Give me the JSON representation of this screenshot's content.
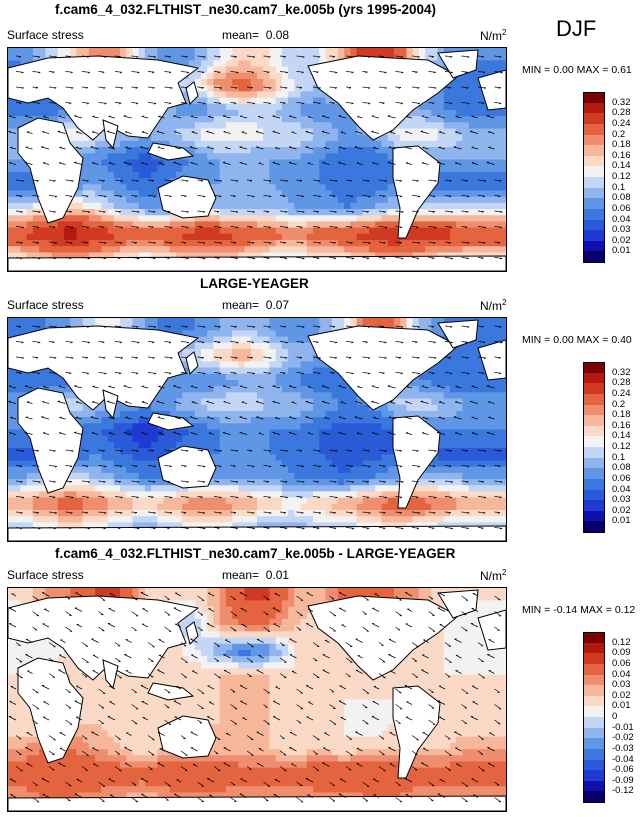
{
  "season": "DJF",
  "panels": [
    {
      "title": "f.cam6_4_032.FLTHIST_ne30.cam7_ke.005b (yrs 1995-2004)",
      "left_label": "Surface stress",
      "mean_label": "mean=",
      "mean_value": "0.08",
      "units": "N/m",
      "units_exp": "2",
      "min_label": "MIN =",
      "min_value": "0.00",
      "max_label": "MAX =",
      "max_value": "0.61",
      "colorbar_labels": [
        "0.32",
        "0.28",
        "0.24",
        "0.2",
        "0.18",
        "0.16",
        "0.14",
        "0.12",
        "0.1",
        "0.08",
        "0.06",
        "0.04",
        "0.03",
        "0.02",
        "0.01"
      ]
    },
    {
      "title": "LARGE-YEAGER",
      "left_label": "Surface stress",
      "mean_label": "mean=",
      "mean_value": "0.07",
      "units": "N/m",
      "units_exp": "2",
      "min_label": "MIN =",
      "min_value": "0.00",
      "max_label": "MAX =",
      "max_value": "0.40",
      "colorbar_labels": [
        "0.32",
        "0.28",
        "0.24",
        "0.2",
        "0.18",
        "0.16",
        "0.14",
        "0.12",
        "0.1",
        "0.08",
        "0.06",
        "0.04",
        "0.03",
        "0.02",
        "0.01"
      ]
    },
    {
      "title": "f.cam6_4_032.FLTHIST_ne30.cam7_ke.005b - LARGE-YEAGER",
      "left_label": "Surface stress",
      "mean_label": "mean=",
      "mean_value": "0.01",
      "units": "N/m",
      "units_exp": "2",
      "min_label": "MIN =",
      "min_value": "-0.14",
      "max_label": "MAX =",
      "max_value": "0.12",
      "colorbar_labels": [
        "0.12",
        "0.09",
        "0.06",
        "0.04",
        "0.03",
        "0.02",
        "0.01",
        "0",
        "-0.01",
        "-0.02",
        "-0.03",
        "-0.04",
        "-0.06",
        "-0.09",
        "-0.12"
      ]
    }
  ],
  "colors": {
    "scale": [
      "#08006a",
      "#1010b0",
      "#1f3ad0",
      "#2a5ad8",
      "#3a78de",
      "#5f96e6",
      "#8fb4ee",
      "#c3d6f6",
      "#f2f2f2",
      "#fad9c6",
      "#f6b79a",
      "#ef8e6e",
      "#e4643f",
      "#d03a23",
      "#b21a10",
      "#7d0000"
    ]
  },
  "chart_data": [
    {
      "type": "heatmap",
      "title": "f.cam6_4_032.FLTHIST_ne30.cam7_ke.005b (yrs 1995-2004)",
      "variable": "Surface stress",
      "units": "N/m2",
      "mean": 0.08,
      "min": 0.0,
      "max": 0.61,
      "levels": [
        0.01,
        0.02,
        0.03,
        0.04,
        0.06,
        0.08,
        0.1,
        0.12,
        0.14,
        0.16,
        0.18,
        0.2,
        0.24,
        0.28,
        0.32
      ],
      "field": [
        [
          0.06,
          0.1,
          0.14,
          0.2,
          0.18,
          0.1,
          0.06,
          0.08,
          0.12,
          0.16,
          0.14,
          0.1,
          0.12,
          0.18,
          0.28,
          0.24,
          0.14,
          0.08,
          0.06,
          0.06
        ],
        [
          0.04,
          0.06,
          0.08,
          0.1,
          0.16,
          0.14,
          0.1,
          0.12,
          0.2,
          0.22,
          0.18,
          0.12,
          0.1,
          0.14,
          0.2,
          0.16,
          0.1,
          0.06,
          0.04,
          0.04
        ],
        [
          0.04,
          0.04,
          0.06,
          0.04,
          0.06,
          0.1,
          0.08,
          0.06,
          0.08,
          0.1,
          0.1,
          0.08,
          0.06,
          0.06,
          0.1,
          0.12,
          0.08,
          0.06,
          0.04,
          0.04
        ],
        [
          0.1,
          0.12,
          0.14,
          0.12,
          0.1,
          0.08,
          0.1,
          0.12,
          0.14,
          0.14,
          0.12,
          0.12,
          0.1,
          0.08,
          0.08,
          0.12,
          0.14,
          0.12,
          0.1,
          0.1
        ],
        [
          0.08,
          0.1,
          0.08,
          0.06,
          0.04,
          0.03,
          0.04,
          0.06,
          0.08,
          0.08,
          0.08,
          0.08,
          0.06,
          0.04,
          0.04,
          0.06,
          0.08,
          0.08,
          0.08,
          0.08
        ],
        [
          0.04,
          0.04,
          0.06,
          0.08,
          0.06,
          0.04,
          0.06,
          0.08,
          0.08,
          0.08,
          0.08,
          0.06,
          0.06,
          0.04,
          0.04,
          0.06,
          0.06,
          0.04,
          0.04,
          0.04
        ],
        [
          0.12,
          0.14,
          0.16,
          0.14,
          0.1,
          0.08,
          0.08,
          0.1,
          0.1,
          0.1,
          0.1,
          0.08,
          0.08,
          0.06,
          0.08,
          0.1,
          0.12,
          0.12,
          0.12,
          0.12
        ],
        [
          0.24,
          0.28,
          0.3,
          0.28,
          0.24,
          0.22,
          0.24,
          0.26,
          0.26,
          0.24,
          0.22,
          0.2,
          0.22,
          0.24,
          0.26,
          0.28,
          0.28,
          0.26,
          0.24,
          0.24
        ],
        [
          0.14,
          0.16,
          0.18,
          0.16,
          0.14,
          0.12,
          0.14,
          0.16,
          0.16,
          0.14,
          0.12,
          0.12,
          0.14,
          0.14,
          0.16,
          0.18,
          0.16,
          0.14,
          0.14,
          0.14
        ]
      ]
    },
    {
      "type": "heatmap",
      "title": "LARGE-YEAGER",
      "variable": "Surface stress",
      "units": "N/m2",
      "mean": 0.07,
      "min": 0.0,
      "max": 0.4,
      "levels": [
        0.01,
        0.02,
        0.03,
        0.04,
        0.06,
        0.08,
        0.1,
        0.12,
        0.14,
        0.16,
        0.18,
        0.2,
        0.24,
        0.28,
        0.32
      ],
      "field": [
        [
          0.04,
          0.06,
          0.08,
          0.12,
          0.12,
          0.08,
          0.04,
          0.06,
          0.08,
          0.1,
          0.08,
          0.06,
          0.08,
          0.12,
          0.22,
          0.2,
          0.1,
          0.06,
          0.04,
          0.04
        ],
        [
          0.04,
          0.04,
          0.06,
          0.08,
          0.12,
          0.12,
          0.1,
          0.12,
          0.16,
          0.18,
          0.14,
          0.1,
          0.08,
          0.1,
          0.16,
          0.12,
          0.08,
          0.04,
          0.04,
          0.04
        ],
        [
          0.04,
          0.04,
          0.04,
          0.04,
          0.06,
          0.08,
          0.06,
          0.06,
          0.06,
          0.08,
          0.08,
          0.06,
          0.04,
          0.04,
          0.08,
          0.1,
          0.06,
          0.04,
          0.04,
          0.04
        ],
        [
          0.08,
          0.1,
          0.12,
          0.1,
          0.08,
          0.06,
          0.08,
          0.1,
          0.12,
          0.12,
          0.1,
          0.1,
          0.08,
          0.06,
          0.06,
          0.1,
          0.12,
          0.1,
          0.08,
          0.08
        ],
        [
          0.06,
          0.08,
          0.06,
          0.04,
          0.03,
          0.02,
          0.03,
          0.04,
          0.06,
          0.06,
          0.06,
          0.06,
          0.04,
          0.03,
          0.03,
          0.04,
          0.06,
          0.06,
          0.06,
          0.06
        ],
        [
          0.03,
          0.03,
          0.04,
          0.06,
          0.04,
          0.03,
          0.04,
          0.06,
          0.06,
          0.06,
          0.06,
          0.04,
          0.04,
          0.03,
          0.03,
          0.04,
          0.04,
          0.03,
          0.03,
          0.03
        ],
        [
          0.08,
          0.1,
          0.12,
          0.1,
          0.08,
          0.06,
          0.06,
          0.08,
          0.08,
          0.08,
          0.08,
          0.06,
          0.06,
          0.04,
          0.06,
          0.08,
          0.1,
          0.1,
          0.08,
          0.08
        ],
        [
          0.18,
          0.2,
          0.22,
          0.2,
          0.18,
          0.16,
          0.18,
          0.2,
          0.2,
          0.18,
          0.16,
          0.14,
          0.16,
          0.18,
          0.2,
          0.22,
          0.22,
          0.2,
          0.18,
          0.18
        ],
        [
          0.1,
          0.12,
          0.14,
          0.12,
          0.1,
          0.08,
          0.1,
          0.12,
          0.12,
          0.1,
          0.08,
          0.08,
          0.1,
          0.1,
          0.12,
          0.14,
          0.12,
          0.1,
          0.1,
          0.1
        ]
      ]
    },
    {
      "type": "heatmap",
      "title": "f.cam6_4_032.FLTHIST_ne30.cam7_ke.005b - LARGE-YEAGER",
      "variable": "Surface stress",
      "units": "N/m2",
      "mean": 0.01,
      "min": -0.14,
      "max": 0.12,
      "levels": [
        -0.12,
        -0.09,
        -0.06,
        -0.04,
        -0.03,
        -0.02,
        -0.01,
        0,
        0.01,
        0.02,
        0.03,
        0.04,
        0.06,
        0.09,
        0.12
      ],
      "field": [
        [
          0.01,
          0.03,
          0.04,
          0.06,
          0.06,
          0.02,
          0.01,
          0.01,
          0.03,
          0.06,
          0.06,
          0.03,
          0.02,
          0.05,
          0.05,
          0.04,
          0.03,
          0.01,
          0.01,
          0.01
        ],
        [
          0.0,
          0.01,
          0.02,
          0.01,
          0.03,
          0.02,
          0.0,
          -0.01,
          0.03,
          0.04,
          0.04,
          0.02,
          0.01,
          0.03,
          0.04,
          0.04,
          0.02,
          0.01,
          0.0,
          0.0
        ],
        [
          0.0,
          0.0,
          0.01,
          0.0,
          0.0,
          0.01,
          0.02,
          0.0,
          -0.02,
          -0.04,
          -0.03,
          0.01,
          0.01,
          0.02,
          0.02,
          0.02,
          0.01,
          0.01,
          0.0,
          0.0
        ],
        [
          0.01,
          0.02,
          0.02,
          0.01,
          0.01,
          0.01,
          0.02,
          0.02,
          0.02,
          0.02,
          0.02,
          0.01,
          0.01,
          0.01,
          0.01,
          0.02,
          0.02,
          0.01,
          0.01,
          0.01
        ],
        [
          0.02,
          0.02,
          0.02,
          0.01,
          0.01,
          0.01,
          0.01,
          0.01,
          0.02,
          0.02,
          0.02,
          0.02,
          0.01,
          0.01,
          0.01,
          0.01,
          0.02,
          0.02,
          0.02,
          0.02
        ],
        [
          0.01,
          0.01,
          0.02,
          0.02,
          0.01,
          0.01,
          0.01,
          0.02,
          0.02,
          0.02,
          0.02,
          0.01,
          0.01,
          0.01,
          0.0,
          0.01,
          0.01,
          0.01,
          0.01,
          0.01
        ],
        [
          0.03,
          0.04,
          0.04,
          0.03,
          0.02,
          0.01,
          0.02,
          0.02,
          0.02,
          0.02,
          0.02,
          0.01,
          0.02,
          0.01,
          0.02,
          0.02,
          0.02,
          0.02,
          0.03,
          0.03
        ],
        [
          0.05,
          0.06,
          0.06,
          0.06,
          0.05,
          0.05,
          0.06,
          0.06,
          0.06,
          0.05,
          0.05,
          0.05,
          0.06,
          0.06,
          0.06,
          0.06,
          0.05,
          0.05,
          0.05,
          0.05
        ],
        [
          0.03,
          0.04,
          0.04,
          0.03,
          0.03,
          0.02,
          0.03,
          0.03,
          0.03,
          0.03,
          0.03,
          0.03,
          0.03,
          0.03,
          0.04,
          0.04,
          0.03,
          0.03,
          0.03,
          0.03
        ]
      ]
    }
  ]
}
